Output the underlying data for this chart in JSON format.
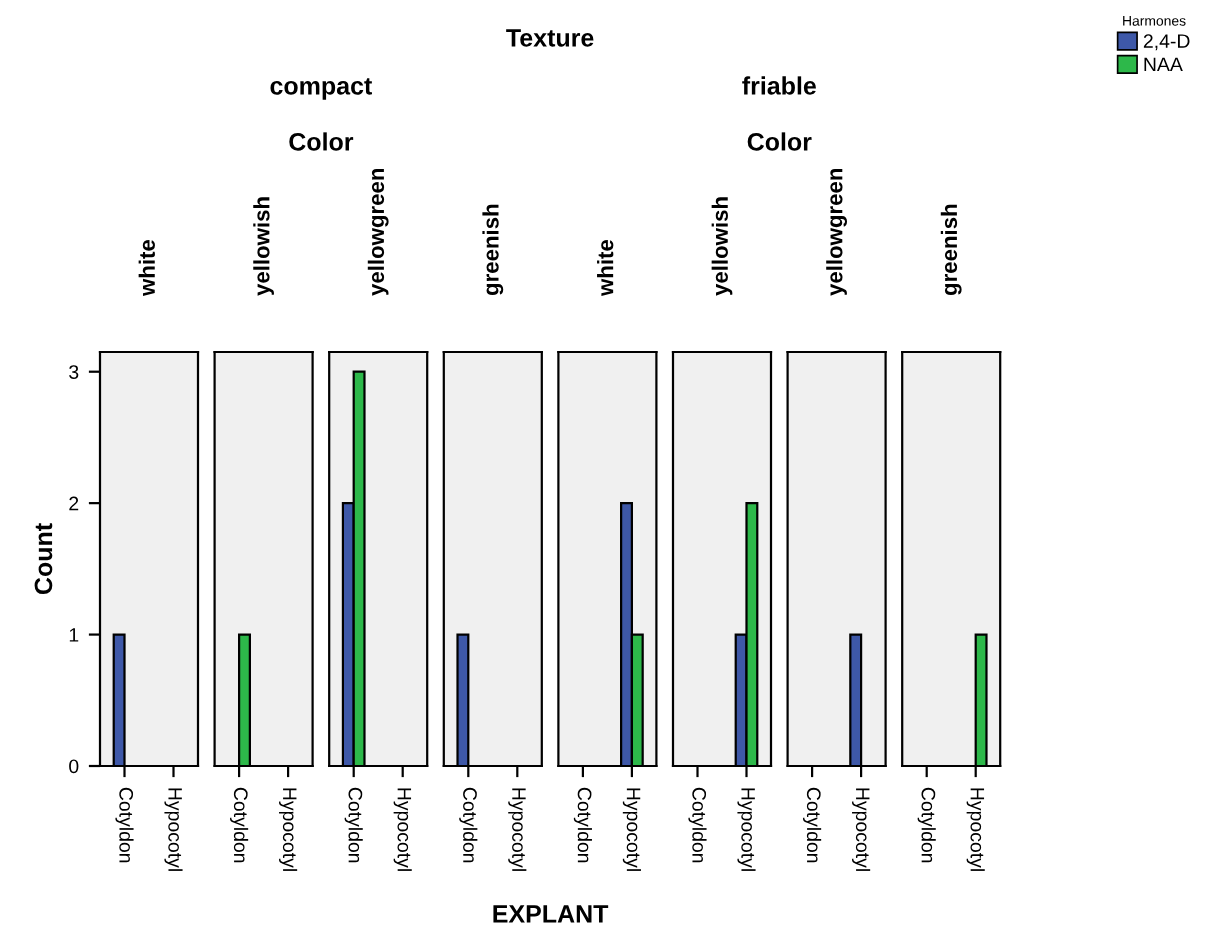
{
  "chart_data": [
    {
      "type": "bar",
      "title": "white",
      "categories": [
        "Cotyldon",
        "Hypocotyl"
      ],
      "ylabel": "Count",
      "legend_title": "Harmones",
      "legend": "top right",
      "annotations": [
        "compact",
        "Color"
      ],
      "ylim": [
        0,
        3.15
      ],
      "yticks": [
        0,
        1,
        2,
        3
      ],
      "series": [
        {
          "name": "2,4-D",
          "color": "#3e58a8",
          "values": [
            1,
            null
          ]
        },
        {
          "name": "NAA",
          "color": "#2db84a",
          "values": [
            null,
            null
          ]
        }
      ]
    },
    {
      "type": "bar",
      "title": "yellowish",
      "categories": [
        "Cotyldon",
        "Hypocotyl"
      ],
      "ylim": [
        0,
        3.15
      ],
      "tick_labels": "x",
      "series": [
        {
          "color": "#3e58a8",
          "values": [
            null,
            null
          ]
        },
        {
          "color": "#2db84a",
          "values": [
            1,
            null
          ]
        }
      ]
    },
    {
      "type": "bar",
      "title": "yellowgreen",
      "categories": [
        "Cotyldon",
        "Hypocotyl"
      ],
      "ylim": [
        0,
        3.15
      ],
      "tick_labels": "x",
      "series": [
        {
          "color": "#3e58a8",
          "values": [
            2,
            null
          ]
        },
        {
          "color": "#2db84a",
          "values": [
            3,
            null
          ]
        }
      ]
    },
    {
      "type": "bar",
      "title": "greenish",
      "categories": [
        "Cotyldon",
        "Hypocotyl"
      ],
      "xlabel": "EXPLANT",
      "annotations": [
        "Texture"
      ],
      "ylim": [
        0,
        3.15
      ],
      "tick_labels": "x",
      "series": [
        {
          "color": "#3e58a8",
          "values": [
            1,
            null
          ]
        },
        {
          "color": "#2db84a",
          "values": [
            null,
            null
          ]
        }
      ]
    },
    {
      "type": "bar",
      "title": "white",
      "categories": [
        "Cotyldon",
        "Hypocotyl"
      ],
      "annotations": [
        "friable",
        "Color"
      ],
      "ylim": [
        0,
        3.15
      ],
      "tick_labels": "x",
      "series": [
        {
          "color": "#3e58a8",
          "values": [
            null,
            2
          ]
        },
        {
          "color": "#2db84a",
          "values": [
            null,
            1
          ]
        }
      ]
    },
    {
      "type": "bar",
      "title": "yellowish",
      "categories": [
        "Cotyldon",
        "Hypocotyl"
      ],
      "ylim": [
        0,
        3.15
      ],
      "tick_labels": "x",
      "series": [
        {
          "color": "#3e58a8",
          "values": [
            null,
            1
          ]
        },
        {
          "color": "#2db84a",
          "values": [
            null,
            2
          ]
        }
      ]
    },
    {
      "type": "bar",
      "title": "yellowgreen",
      "categories": [
        "Cotyldon",
        "Hypocotyl"
      ],
      "ylim": [
        0,
        3.15
      ],
      "tick_labels": "x",
      "series": [
        {
          "color": "#3e58a8",
          "values": [
            null,
            1
          ]
        },
        {
          "color": "#2db84a",
          "values": [
            null,
            null
          ]
        }
      ]
    },
    {
      "type": "bar",
      "title": "greenish",
      "categories": [
        "Cotyldon",
        "Hypocotyl"
      ],
      "ylim": [
        0,
        3.15
      ],
      "tick_labels": "x",
      "series": [
        {
          "color": "#3e58a8",
          "values": [
            null,
            null
          ]
        },
        {
          "color": "#2db84a",
          "values": [
            null,
            1
          ]
        }
      ]
    }
  ]
}
